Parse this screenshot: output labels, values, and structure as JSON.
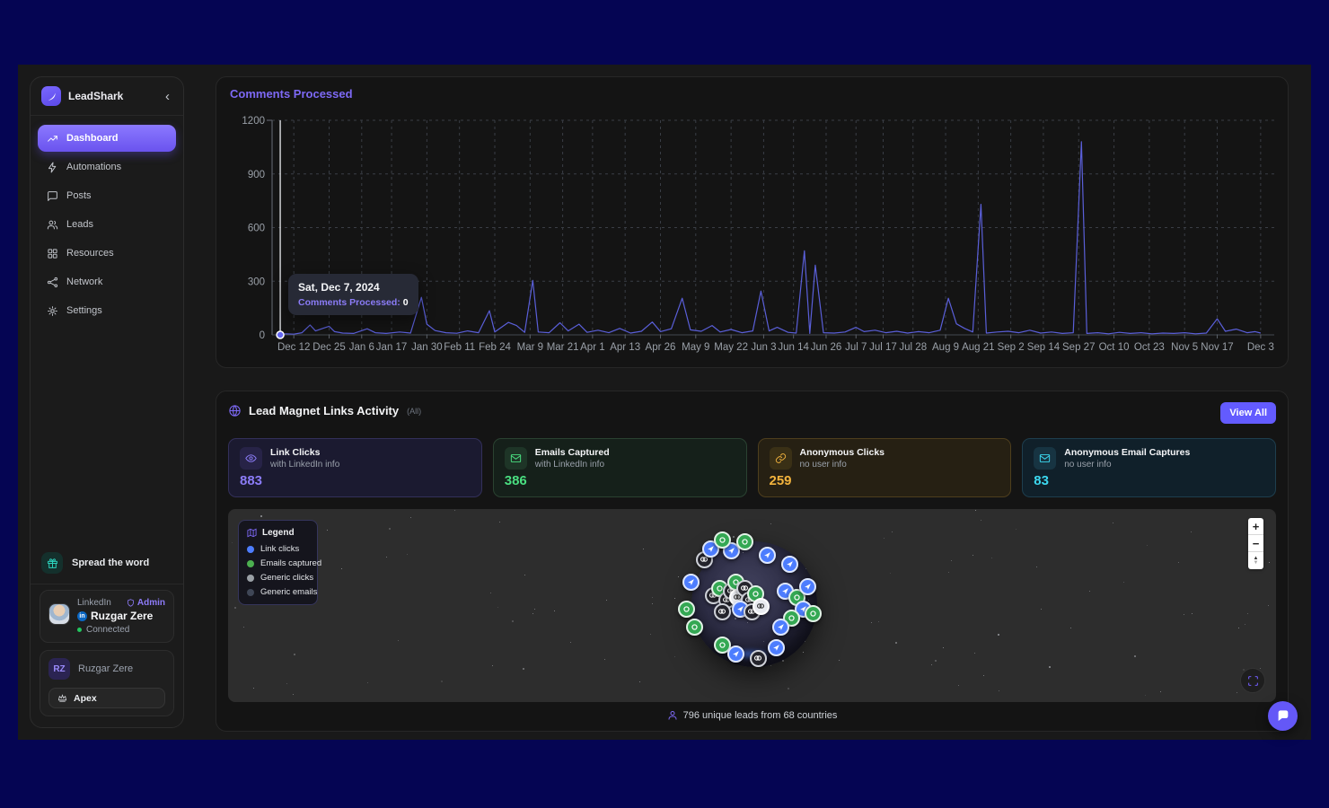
{
  "app": {
    "name": "LeadShark"
  },
  "sidebar": {
    "brand": "LeadShark",
    "collapse_icon": "‹",
    "nav": [
      {
        "label": "Dashboard",
        "icon": "trending-up-icon",
        "active": true
      },
      {
        "label": "Automations",
        "icon": "lightning-icon",
        "active": false
      },
      {
        "label": "Posts",
        "icon": "chat-icon",
        "active": false
      },
      {
        "label": "Leads",
        "icon": "users-icon",
        "active": false
      },
      {
        "label": "Resources",
        "icon": "blocks-icon",
        "active": false
      },
      {
        "label": "Network",
        "icon": "network-icon",
        "active": false
      },
      {
        "label": "Settings",
        "icon": "gear-icon",
        "active": false
      }
    ],
    "spread_label": "Spread the word",
    "linkedin_card": {
      "network": "LinkedIn",
      "badge": "Admin",
      "name": "Ruzgar Zere",
      "status": "Connected"
    },
    "profile": {
      "initials": "RZ",
      "name": "Ruzgar Zere",
      "plan_button": "Apex"
    }
  },
  "chart_data": {
    "type": "line",
    "title": "Comments Processed",
    "series_name": "Comments Processed",
    "line_color": "#5a5fd9",
    "ylim": [
      0,
      1200
    ],
    "yticks": [
      0,
      300,
      600,
      900,
      1200
    ],
    "xticks": [
      "Dec 12",
      "Dec 25",
      "Jan 6",
      "Jan 17",
      "Jan 30",
      "Feb 11",
      "Feb 24",
      "Mar 9",
      "Mar 21",
      "Apr 1",
      "Apr 13",
      "Apr 26",
      "May 9",
      "May 22",
      "Jun 3",
      "Jun 14",
      "Jun 26",
      "Jul 7",
      "Jul 17",
      "Jul 28",
      "Aug 9",
      "Aug 21",
      "Sep 2",
      "Sep 14",
      "Sep 27",
      "Oct 10",
      "Oct 23",
      "Nov 5",
      "Nov 17",
      "Dec 3"
    ],
    "points": [
      [
        "Dec 7",
        0
      ],
      [
        "Dec 9",
        6
      ],
      [
        "Dec 12",
        4
      ],
      [
        "Dec 15",
        12
      ],
      [
        "Dec 18",
        55
      ],
      [
        "Dec 20",
        22
      ],
      [
        "Dec 23",
        38
      ],
      [
        "Dec 25",
        48
      ],
      [
        "Dec 27",
        18
      ],
      [
        "Dec 30",
        10
      ],
      [
        "Jan 3",
        8
      ],
      [
        "Jan 8",
        34
      ],
      [
        "Jan 11",
        12
      ],
      [
        "Jan 15",
        8
      ],
      [
        "Jan 20",
        16
      ],
      [
        "Jan 24",
        10
      ],
      [
        "Jan 28",
        210
      ],
      [
        "Jan 30",
        60
      ],
      [
        "Feb 2",
        24
      ],
      [
        "Feb 6",
        12
      ],
      [
        "Feb 10",
        9
      ],
      [
        "Feb 14",
        22
      ],
      [
        "Feb 18",
        12
      ],
      [
        "Feb 22",
        135
      ],
      [
        "Feb 24",
        16
      ],
      [
        "Mar 1",
        70
      ],
      [
        "Mar 4",
        52
      ],
      [
        "Mar 7",
        14
      ],
      [
        "Mar 10",
        305
      ],
      [
        "Mar 12",
        16
      ],
      [
        "Mar 16",
        12
      ],
      [
        "Mar 20",
        68
      ],
      [
        "Mar 23",
        22
      ],
      [
        "Mar 27",
        60
      ],
      [
        "Mar 30",
        14
      ],
      [
        "Apr 3",
        26
      ],
      [
        "Apr 7",
        12
      ],
      [
        "Apr 11",
        36
      ],
      [
        "Apr 15",
        10
      ],
      [
        "Apr 19",
        20
      ],
      [
        "Apr 23",
        72
      ],
      [
        "Apr 26",
        18
      ],
      [
        "Apr 30",
        34
      ],
      [
        "May 4",
        205
      ],
      [
        "May 7",
        28
      ],
      [
        "May 11",
        20
      ],
      [
        "May 15",
        52
      ],
      [
        "May 18",
        16
      ],
      [
        "May 22",
        30
      ],
      [
        "May 26",
        12
      ],
      [
        "May 30",
        22
      ],
      [
        "Jun 2",
        245
      ],
      [
        "Jun 5",
        22
      ],
      [
        "Jun 8",
        42
      ],
      [
        "Jun 12",
        14
      ],
      [
        "Jun 15",
        10
      ],
      [
        "Jun 18",
        470
      ],
      [
        "Jun 20",
        8
      ],
      [
        "Jun 22",
        390
      ],
      [
        "Jun 25",
        12
      ],
      [
        "Jun 29",
        10
      ],
      [
        "Jul 3",
        16
      ],
      [
        "Jul 7",
        42
      ],
      [
        "Jul 10",
        18
      ],
      [
        "Jul 14",
        26
      ],
      [
        "Jul 18",
        12
      ],
      [
        "Jul 22",
        20
      ],
      [
        "Jul 26",
        10
      ],
      [
        "Jul 30",
        18
      ],
      [
        "Aug 3",
        12
      ],
      [
        "Aug 7",
        26
      ],
      [
        "Aug 10",
        205
      ],
      [
        "Aug 13",
        62
      ],
      [
        "Aug 16",
        36
      ],
      [
        "Aug 19",
        16
      ],
      [
        "Aug 22",
        730
      ],
      [
        "Aug 24",
        10
      ],
      [
        "Aug 28",
        16
      ],
      [
        "Sep 1",
        20
      ],
      [
        "Sep 5",
        12
      ],
      [
        "Sep 9",
        26
      ],
      [
        "Sep 13",
        10
      ],
      [
        "Sep 17",
        16
      ],
      [
        "Sep 21",
        8
      ],
      [
        "Sep 25",
        12
      ],
      [
        "Sep 28",
        1080
      ],
      [
        "Sep 30",
        8
      ],
      [
        "Oct 4",
        12
      ],
      [
        "Oct 8",
        6
      ],
      [
        "Oct 12",
        14
      ],
      [
        "Oct 16",
        8
      ],
      [
        "Oct 20",
        12
      ],
      [
        "Oct 24",
        6
      ],
      [
        "Oct 28",
        10
      ],
      [
        "Nov 1",
        8
      ],
      [
        "Nov 5",
        12
      ],
      [
        "Nov 9",
        6
      ],
      [
        "Nov 13",
        10
      ],
      [
        "Nov 17",
        90
      ],
      [
        "Nov 20",
        20
      ],
      [
        "Nov 24",
        32
      ],
      [
        "Nov 28",
        12
      ],
      [
        "Dec 1",
        18
      ],
      [
        "Dec 3",
        10
      ]
    ],
    "crosshair_date": "Dec 7",
    "tooltip": {
      "date_label": "Sat, Dec 7, 2024",
      "series_label": "Comments Processed",
      "value": "0"
    }
  },
  "lead_magnet": {
    "title": "Lead Magnet Links Activity",
    "filter_label": "(All)",
    "view_all_label": "View All",
    "cards": [
      {
        "title": "Link Clicks",
        "subtitle": "with LinkedIn info",
        "value": "883",
        "accent": "#8b7cf7",
        "bg": "#1b1a30",
        "border": "#33305a",
        "icon_bg": "#272347",
        "icon": "eye-icon"
      },
      {
        "title": "Emails Captured",
        "subtitle": "with LinkedIn info",
        "value": "386",
        "accent": "#4ade80",
        "bg": "#15201a",
        "border": "#2a4231",
        "icon_bg": "#1e3527",
        "icon": "mail-icon"
      },
      {
        "title": "Anonymous Clicks",
        "subtitle": "no user info",
        "value": "259",
        "accent": "#f2b33d",
        "bg": "#262013",
        "border": "#4e3e1d",
        "icon_bg": "#3a3016",
        "icon": "link-icon"
      },
      {
        "title": "Anonymous Email Captures",
        "subtitle": "no user info",
        "value": "83",
        "accent": "#3cd8f0",
        "bg": "#10202a",
        "border": "#1e3e4e",
        "icon_bg": "#173442",
        "icon": "mail-at-icon"
      }
    ],
    "legend": {
      "title": "Legend",
      "items": [
        {
          "label": "Link clicks",
          "color": "#4d7dfe"
        },
        {
          "label": "Emails captured",
          "color": "#4caf50"
        },
        {
          "label": "Generic clicks",
          "color": "#9aa0a6"
        },
        {
          "label": "Generic emails",
          "color": "#3f4656"
        }
      ]
    },
    "map_controls": {
      "zoom_in": "+",
      "zoom_out": "−"
    },
    "footer": "796 unique leads from 68 countries"
  }
}
